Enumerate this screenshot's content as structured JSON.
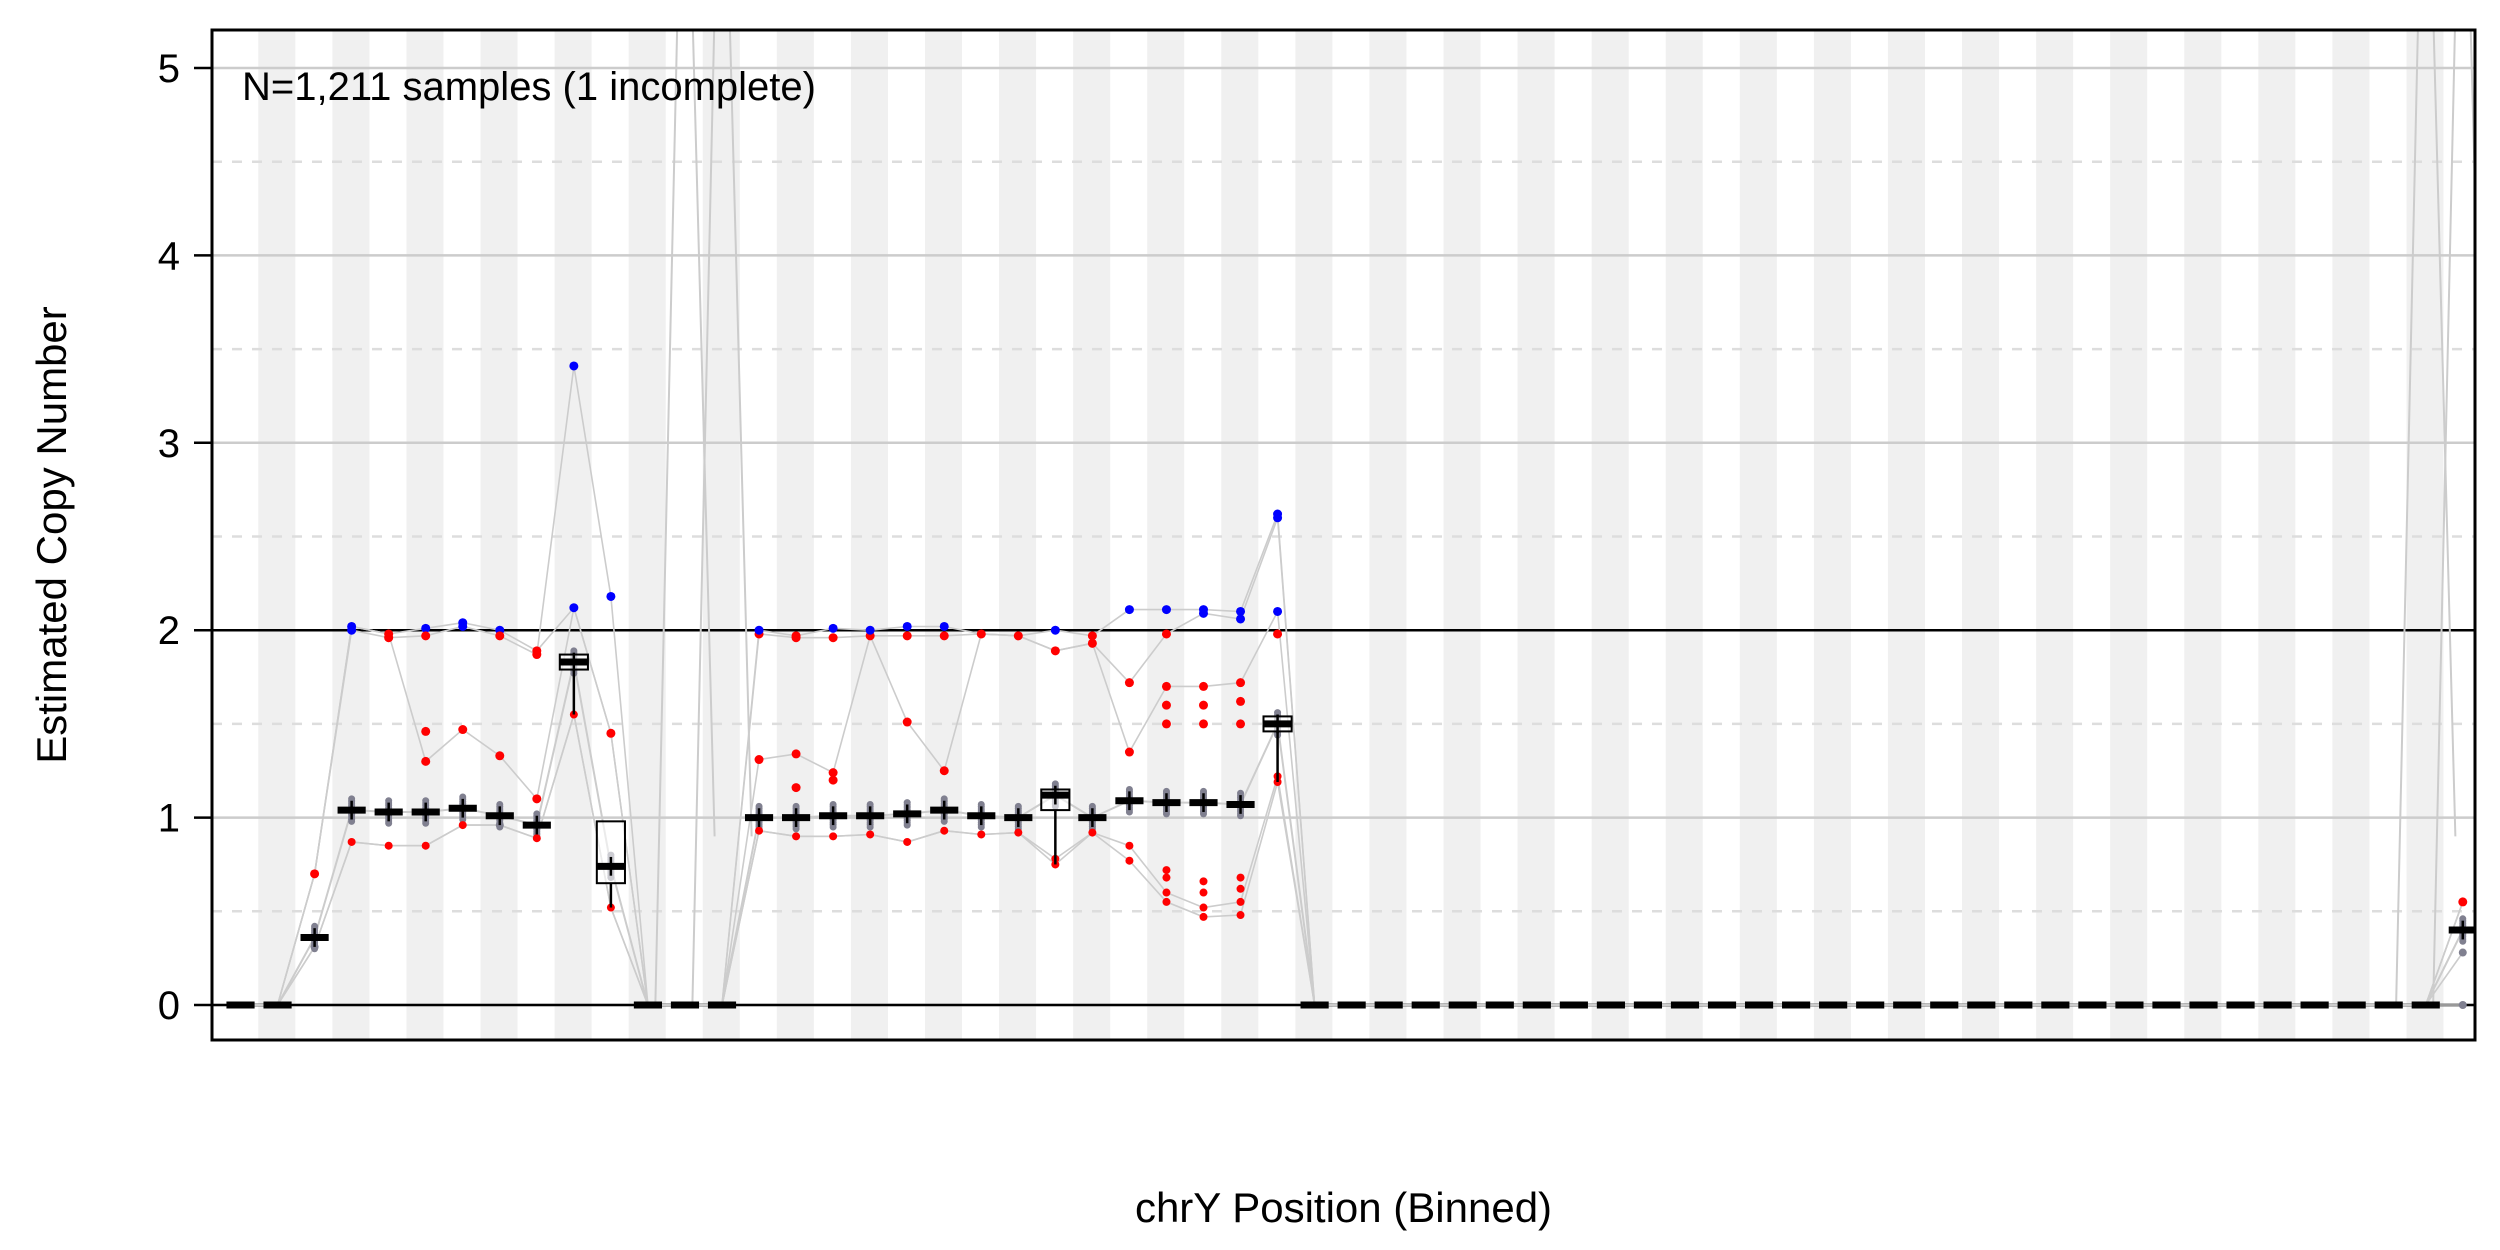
{
  "chart_data": {
    "type": "boxplot",
    "annotation": "N=1,211 samples (1 incomplete)",
    "xlabel": "chrY Position (Binned)",
    "ylabel": "Estimated Copy Number",
    "ylim": [
      -0.18,
      5.2
    ],
    "y_ticks": [
      0,
      1,
      2,
      3,
      4,
      5
    ],
    "y_tick_labels": [
      "0",
      "1",
      "2",
      "3",
      "4",
      "5"
    ],
    "reference_line": 2,
    "grid": "major solid, minor dashed",
    "background": "alternating grey/white bin stripes",
    "bins": [
      {
        "bin": 1,
        "median": 0.0
      },
      {
        "bin": 2,
        "median": 0.0
      },
      {
        "bin": 3,
        "median": 0.36,
        "low_outliers": [
          0.31
        ],
        "high_outliers": [
          0.7
        ]
      },
      {
        "bin": 4,
        "median": 1.04,
        "low_outliers": [
          0.87
        ],
        "high_outliers": [
          2.02,
          2.0
        ]
      },
      {
        "bin": 5,
        "median": 1.03,
        "low_outliers": [
          0.85
        ],
        "high_outliers": [
          1.98,
          1.96
        ]
      },
      {
        "bin": 6,
        "median": 1.03,
        "low_outliers": [
          0.85
        ],
        "high_outliers": [
          1.46,
          1.3,
          2.01,
          1.97
        ]
      },
      {
        "bin": 7,
        "median": 1.05,
        "low_outliers": [
          0.96
        ],
        "high_outliers": [
          1.47,
          2.04,
          2.02
        ]
      },
      {
        "bin": 8,
        "median": 1.01,
        "low_outliers": [
          0.96
        ],
        "high_outliers": [
          1.33,
          2.0,
          1.97
        ]
      },
      {
        "bin": 9,
        "median": 0.96,
        "low_outliers": [
          0.89
        ],
        "high_outliers": [
          1.1,
          1.89,
          1.87
        ]
      },
      {
        "bin": 10,
        "median": 1.83,
        "q1": 1.79,
        "q3": 1.87,
        "low_outliers": [
          1.55
        ],
        "high_outliers": [
          2.12,
          3.41
        ]
      },
      {
        "bin": 11,
        "median": 0.74,
        "q1": 0.65,
        "q3": 0.98,
        "low_outliers": [
          0.52
        ],
        "high_outliers": [
          1.45,
          2.18
        ]
      },
      {
        "bin": 12,
        "median": 0.0
      },
      {
        "bin": 13,
        "median": 0.0
      },
      {
        "bin": 14,
        "median": 0.0,
        "note": "values exceed plotted range"
      },
      {
        "bin": 15,
        "median": 1.0,
        "low_outliers": [
          0.93
        ],
        "high_outliers": [
          1.31,
          1.98,
          2.0
        ]
      },
      {
        "bin": 16,
        "median": 1.0,
        "low_outliers": [
          0.9
        ],
        "high_outliers": [
          1.16,
          1.34,
          1.96,
          1.97
        ]
      },
      {
        "bin": 17,
        "median": 1.01,
        "low_outliers": [
          0.9
        ],
        "high_outliers": [
          1.2,
          1.24,
          1.96,
          2.01
        ]
      },
      {
        "bin": 18,
        "median": 1.01,
        "low_outliers": [
          0.91
        ],
        "high_outliers": [
          1.97,
          2.0
        ]
      },
      {
        "bin": 19,
        "median": 1.02,
        "low_outliers": [
          0.87
        ],
        "high_outliers": [
          1.51,
          1.97,
          2.02
        ]
      },
      {
        "bin": 20,
        "median": 1.04,
        "low_outliers": [
          0.93
        ],
        "high_outliers": [
          1.25,
          1.97,
          2.02
        ]
      },
      {
        "bin": 21,
        "median": 1.01,
        "low_outliers": [
          0.91
        ],
        "high_outliers": [
          1.98
        ]
      },
      {
        "bin": 22,
        "median": 1.0,
        "low_outliers": [
          0.92
        ],
        "high_outliers": [
          1.97
        ]
      },
      {
        "bin": 23,
        "median": 1.12,
        "q1": 1.04,
        "q3": 1.15,
        "low_outliers": [
          0.75,
          0.78
        ],
        "high_outliers": [
          1.89,
          2.0
        ]
      },
      {
        "bin": 24,
        "median": 1.0,
        "low_outliers": [
          0.92
        ],
        "high_outliers": [
          1.93,
          1.97
        ]
      },
      {
        "bin": 25,
        "median": 1.09,
        "low_outliers": [
          0.77,
          0.85
        ],
        "high_outliers": [
          1.35,
          1.72,
          2.11
        ]
      },
      {
        "bin": 26,
        "median": 1.08,
        "low_outliers": [
          0.55,
          0.6,
          0.68,
          0.72
        ],
        "high_outliers": [
          1.5,
          1.6,
          1.7,
          1.98,
          2.11
        ]
      },
      {
        "bin": 27,
        "median": 1.08,
        "low_outliers": [
          0.47,
          0.52,
          0.6,
          0.66
        ],
        "high_outliers": [
          1.5,
          1.6,
          1.7,
          2.09,
          2.11
        ]
      },
      {
        "bin": 28,
        "median": 1.07,
        "low_outliers": [
          0.48,
          0.55,
          0.62,
          0.68
        ],
        "high_outliers": [
          1.5,
          1.62,
          1.72,
          2.06,
          2.1
        ]
      },
      {
        "bin": 29,
        "median": 1.5,
        "q1": 1.46,
        "q3": 1.54,
        "low_outliers": [
          1.19,
          1.22
        ],
        "high_outliers": [
          1.98,
          2.1,
          2.6,
          2.62
        ]
      },
      {
        "bin": 30,
        "median": 0.0
      },
      {
        "bin": 31,
        "median": 0.0
      },
      {
        "bin": 32,
        "median": 0.0
      },
      {
        "bin": 33,
        "median": 0.0
      },
      {
        "bin": 34,
        "median": 0.0
      },
      {
        "bin": 35,
        "median": 0.0
      },
      {
        "bin": 36,
        "median": 0.0
      },
      {
        "bin": 37,
        "median": 0.0
      },
      {
        "bin": 38,
        "median": 0.0
      },
      {
        "bin": 39,
        "median": 0.0
      },
      {
        "bin": 40,
        "median": 0.0
      },
      {
        "bin": 41,
        "median": 0.0
      },
      {
        "bin": 42,
        "median": 0.0
      },
      {
        "bin": 43,
        "median": 0.0
      },
      {
        "bin": 44,
        "median": 0.0
      },
      {
        "bin": 45,
        "median": 0.0
      },
      {
        "bin": 46,
        "median": 0.0
      },
      {
        "bin": 47,
        "median": 0.0
      },
      {
        "bin": 48,
        "median": 0.0
      },
      {
        "bin": 49,
        "median": 0.0
      },
      {
        "bin": 50,
        "median": 0.0
      },
      {
        "bin": 51,
        "median": 0.0
      },
      {
        "bin": 52,
        "median": 0.0
      },
      {
        "bin": 53,
        "median": 0.0
      },
      {
        "bin": 54,
        "median": 0.0
      },
      {
        "bin": 55,
        "median": 0.0
      },
      {
        "bin": 56,
        "median": 0.0
      },
      {
        "bin": 57,
        "median": 0.0
      },
      {
        "bin": 58,
        "median": 0.0
      },
      {
        "bin": 59,
        "median": 0.0
      },
      {
        "bin": 60,
        "median": 0.0
      },
      {
        "bin": 61,
        "median": 0.4,
        "low_outliers": [
          0.0,
          0.28
        ],
        "high_outliers": [
          0.55
        ]
      }
    ],
    "tall_bins": [
      13,
      14,
      60,
      61
    ],
    "colors": {
      "box": "#000000",
      "median": "#000000",
      "points": "#808090",
      "high_outlier": "#ff0000",
      "low_outlier": "#ff0000",
      "extreme_high": "#0000ff",
      "sample_lines": "#cccccc",
      "stripe": "#f0f0f0",
      "grid_major": "#cccccc",
      "grid_minor": "#dddddd"
    }
  }
}
